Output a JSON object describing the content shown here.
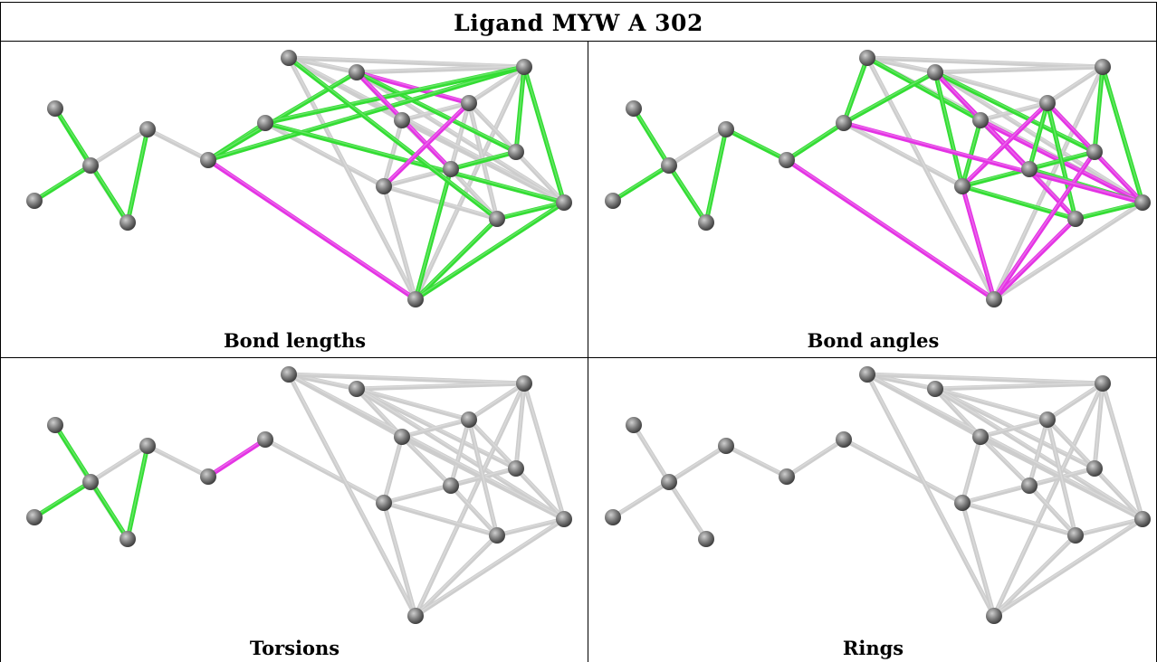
{
  "title": "Ligand MYW A 302",
  "panels": [
    {
      "caption": "Bond lengths",
      "green": [
        [
          0,
          1
        ],
        [
          1,
          2
        ],
        [
          2,
          3
        ],
        [
          3,
          4
        ],
        [
          5,
          8
        ],
        [
          5,
          9
        ],
        [
          5,
          6
        ],
        [
          6,
          9
        ],
        [
          9,
          13
        ],
        [
          8,
          13
        ],
        [
          13,
          14
        ],
        [
          14,
          15
        ],
        [
          15,
          16
        ],
        [
          6,
          17
        ],
        [
          17,
          16
        ],
        [
          17,
          15
        ],
        [
          7,
          16
        ],
        [
          9,
          17
        ]
      ],
      "magenta": [
        [
          5,
          15
        ],
        [
          8,
          14
        ],
        [
          8,
          11
        ],
        [
          11,
          12
        ]
      ]
    },
    {
      "caption": "Bond angles",
      "green": [
        [
          0,
          1
        ],
        [
          1,
          2
        ],
        [
          1,
          3
        ],
        [
          3,
          4
        ],
        [
          4,
          5
        ],
        [
          5,
          6
        ],
        [
          6,
          7
        ],
        [
          7,
          10
        ],
        [
          5,
          6
        ],
        [
          9,
          13
        ],
        [
          8,
          13
        ],
        [
          6,
          8
        ],
        [
          8,
          12
        ],
        [
          10,
          12
        ],
        [
          11,
          14
        ],
        [
          9,
          17
        ],
        [
          10,
          14
        ],
        [
          12,
          13
        ],
        [
          14,
          17
        ],
        [
          16,
          17
        ],
        [
          12,
          16
        ],
        [
          11,
          16
        ]
      ],
      "magenta": [
        [
          5,
          15
        ],
        [
          8,
          14
        ],
        [
          8,
          16
        ],
        [
          11,
          12
        ],
        [
          12,
          15
        ],
        [
          15,
          13
        ],
        [
          15,
          16
        ],
        [
          6,
          17
        ],
        [
          10,
          17
        ],
        [
          11,
          17
        ]
      ]
    },
    {
      "caption": "Torsions",
      "green": [
        [
          0,
          1
        ],
        [
          2,
          3
        ],
        [
          3,
          4
        ]
      ],
      "magenta": [
        [
          6,
          5
        ]
      ]
    },
    {
      "caption": "Rings",
      "green": [],
      "magenta": []
    }
  ]
}
